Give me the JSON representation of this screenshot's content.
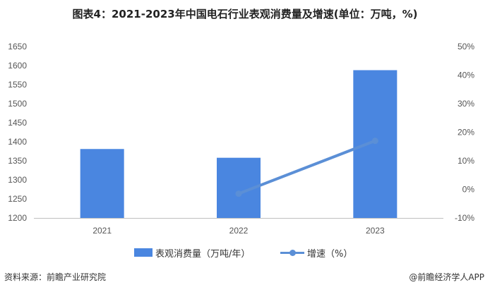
{
  "title": "图表4：2021-2023年中国电石行业表观消费量及增速(单位：万吨，%)",
  "footer": {
    "source": "资料来源：前瞻产业研究院",
    "credit": "@前瞻经济学人APP"
  },
  "colors": {
    "bar": "#4a86e0",
    "line": "#5b8fd6",
    "axis": "#bfbfbf"
  },
  "chart_data": {
    "type": "bar",
    "categories": [
      "2021",
      "2022",
      "2023"
    ],
    "series": [
      {
        "name": "表观消费量（万吨/年）",
        "type": "bar",
        "axis": "left",
        "values": [
          1381,
          1358,
          1588
        ]
      },
      {
        "name": "增速（%）",
        "type": "line",
        "axis": "right",
        "values": [
          null,
          -1.5,
          17
        ]
      }
    ],
    "y_left": {
      "min": 1200,
      "max": 1650,
      "ticks": [
        "1200",
        "1250",
        "1300",
        "1350",
        "1400",
        "1450",
        "1500",
        "1550",
        "1600",
        "1650"
      ]
    },
    "y_right": {
      "min": -10,
      "max": 50,
      "ticks": [
        "-10%",
        "0%",
        "10%",
        "20%",
        "30%",
        "40%",
        "50%"
      ]
    },
    "legend_position": "bottom",
    "grid": false
  }
}
